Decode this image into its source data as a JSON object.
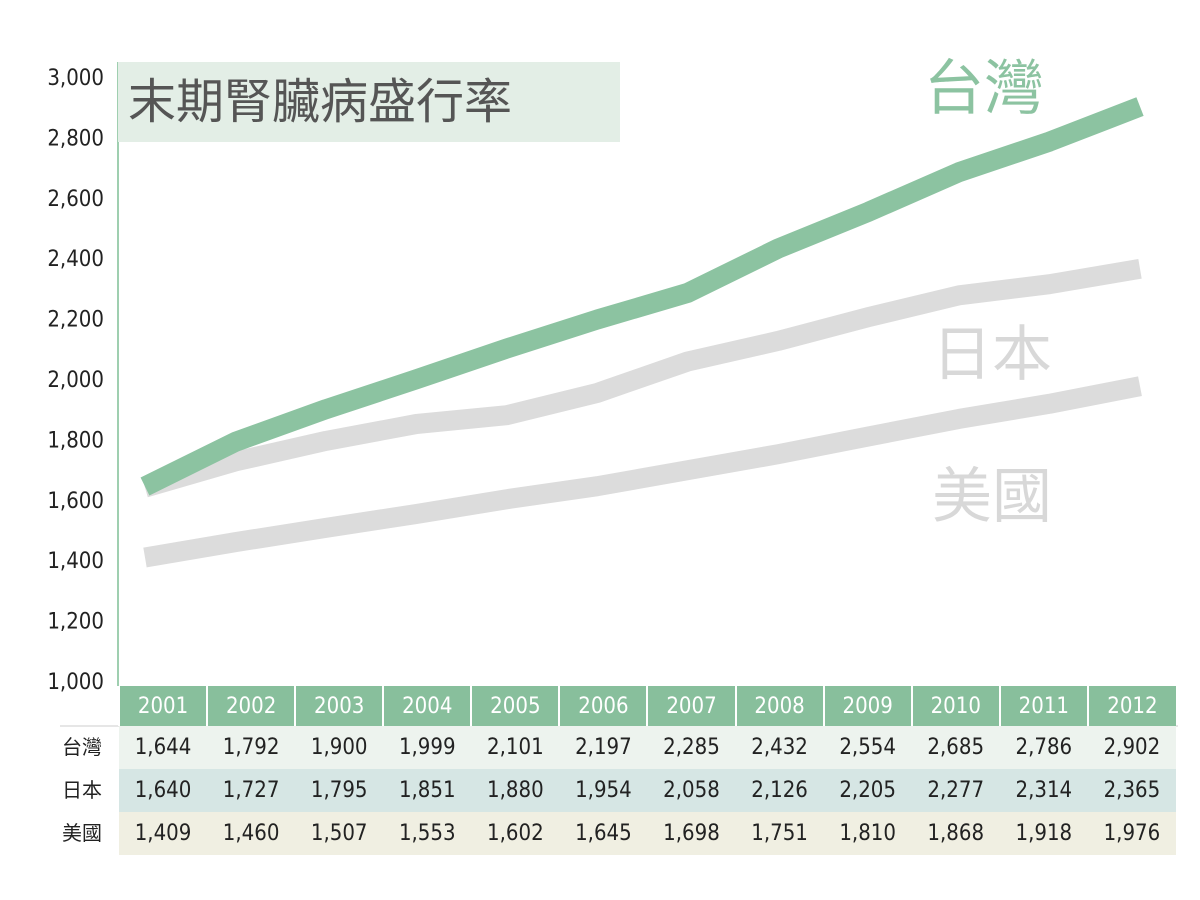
{
  "chart_data": {
    "type": "line",
    "title": "末期腎臟病盛行率",
    "xlabel": "",
    "ylabel": "",
    "ylim": [
      1000,
      3000
    ],
    "yticks": [
      "1,000",
      "1,200",
      "1,400",
      "1,600",
      "1,800",
      "2,000",
      "2,200",
      "2,400",
      "2,600",
      "2,800",
      "3,000"
    ],
    "categories": [
      "2001",
      "2002",
      "2003",
      "2004",
      "2005",
      "2006",
      "2007",
      "2008",
      "2009",
      "2010",
      "2011",
      "2012"
    ],
    "series": [
      {
        "name": "台灣",
        "color": "#8cc3a1",
        "values": [
          1644,
          1792,
          1900,
          1999,
          2101,
          2197,
          2285,
          2432,
          2554,
          2685,
          2786,
          2902
        ],
        "display": [
          "1,644",
          "1,792",
          "1,900",
          "1,999",
          "2,101",
          "2,197",
          "2,285",
          "2,432",
          "2,554",
          "2,685",
          "2,786",
          "2,902"
        ]
      },
      {
        "name": "日本",
        "color": "#dcdcdc",
        "values": [
          1640,
          1727,
          1795,
          1851,
          1880,
          1954,
          2058,
          2126,
          2205,
          2277,
          2314,
          2365
        ],
        "display": [
          "1,640",
          "1,727",
          "1,795",
          "1,851",
          "1,880",
          "1,954",
          "2,058",
          "2,126",
          "2,205",
          "2,277",
          "2,314",
          "2,365"
        ]
      },
      {
        "name": "美國",
        "color": "#dcdcdc",
        "values": [
          1409,
          1460,
          1507,
          1553,
          1602,
          1645,
          1698,
          1751,
          1810,
          1868,
          1918,
          1976
        ],
        "display": [
          "1,409",
          "1,460",
          "1,507",
          "1,553",
          "1,602",
          "1,645",
          "1,698",
          "1,751",
          "1,810",
          "1,868",
          "1,918",
          "1,976"
        ]
      }
    ],
    "grid": false,
    "legend": "inline-right"
  },
  "colors": {
    "taiwan_label": "#8cc3a1",
    "japan_label": "#d8d8d8",
    "usa_label": "#d8d8d8",
    "header_bg": "#88bf9c"
  }
}
